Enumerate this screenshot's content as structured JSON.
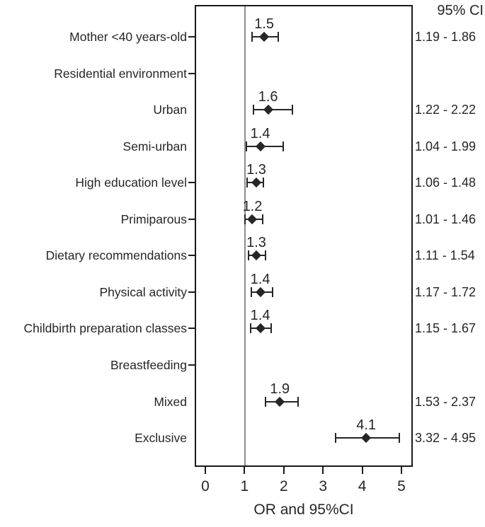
{
  "colors": {
    "ink": "#262626",
    "marker": "#262626",
    "frame": "#1a1a1a",
    "refline": "#8c8c8c",
    "background": "#ffffff"
  },
  "chart_data": {
    "type": "scatter",
    "variant": "forest-plot",
    "title": "",
    "xlabel": "OR and 95%CI",
    "ylabel": "",
    "ci_header": "95% CI",
    "xlim": [
      0,
      5
    ],
    "xticks": [
      0,
      1,
      2,
      3,
      4,
      5
    ],
    "reference_line_x": 1,
    "grid": false,
    "legend": "none",
    "rows": [
      {
        "label": "Mother <40 years-old",
        "or": 1.5,
        "or_text": "1.5",
        "ci_low": 1.19,
        "ci_high": 1.86,
        "ci_text": "1.19 - 1.86",
        "axis_tick": true
      },
      {
        "label": "Residential environment",
        "or": null,
        "or_text": "",
        "ci_low": null,
        "ci_high": null,
        "ci_text": "",
        "axis_tick": true
      },
      {
        "label": "Urban",
        "or": 1.6,
        "or_text": "1.6",
        "ci_low": 1.22,
        "ci_high": 2.22,
        "ci_text": "1.22 - 2.22",
        "axis_tick": false
      },
      {
        "label": "Semi-urban",
        "or": 1.4,
        "or_text": "1.4",
        "ci_low": 1.04,
        "ci_high": 1.99,
        "ci_text": "1.04 - 1.99",
        "axis_tick": false
      },
      {
        "label": "High education level",
        "or": 1.3,
        "or_text": "1.3",
        "ci_low": 1.06,
        "ci_high": 1.48,
        "ci_text": "1.06 - 1.48",
        "axis_tick": true
      },
      {
        "label": "Primiparous",
        "or": 1.2,
        "or_text": "1.2",
        "ci_low": 1.01,
        "ci_high": 1.46,
        "ci_text": "1.01 - 1.46",
        "axis_tick": true
      },
      {
        "label": "Dietary recommendations",
        "or": 1.3,
        "or_text": "1.3",
        "ci_low": 1.11,
        "ci_high": 1.54,
        "ci_text": "1.11 - 1.54",
        "axis_tick": true
      },
      {
        "label": "Physical activity",
        "or": 1.4,
        "or_text": "1.4",
        "ci_low": 1.17,
        "ci_high": 1.72,
        "ci_text": "1.17 - 1.72",
        "axis_tick": true
      },
      {
        "label": "Childbirth preparation classes",
        "or": 1.4,
        "or_text": "1.4",
        "ci_low": 1.15,
        "ci_high": 1.67,
        "ci_text": "1.15 - 1.67",
        "axis_tick": true
      },
      {
        "label": "Breastfeeding",
        "or": null,
        "or_text": "",
        "ci_low": null,
        "ci_high": null,
        "ci_text": "",
        "axis_tick": true
      },
      {
        "label": "Mixed",
        "or": 1.9,
        "or_text": "1.9",
        "ci_low": 1.53,
        "ci_high": 2.37,
        "ci_text": "1.53 - 2.37",
        "axis_tick": false
      },
      {
        "label": "Exclusive",
        "or": 4.1,
        "or_text": "4.1",
        "ci_low": 3.32,
        "ci_high": 4.95,
        "ci_text": "3.32 - 4.95",
        "axis_tick": false
      }
    ]
  }
}
